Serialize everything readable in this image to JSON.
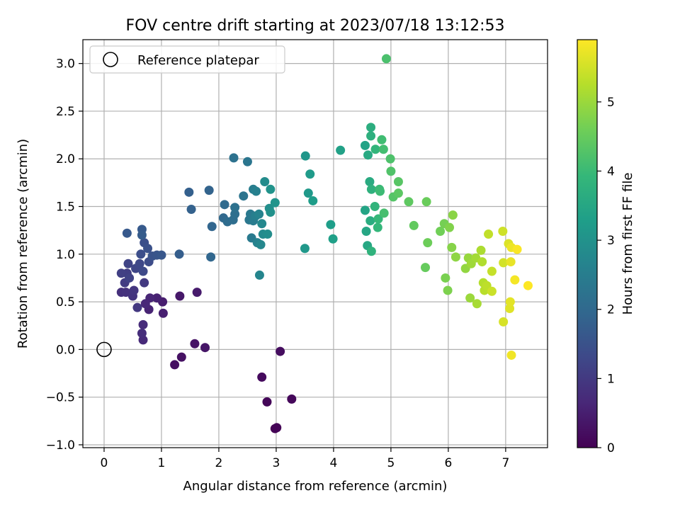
{
  "chart_data": {
    "type": "scatter",
    "title": "FOV centre drift starting at 2023/07/18 13:12:53",
    "xlabel": "Angular distance from reference (arcmin)",
    "ylabel": "Rotation from reference (arcmin)",
    "xlim": [
      -0.37,
      7.73
    ],
    "ylim": [
      -1.03,
      3.25
    ],
    "xticks": [
      0,
      1,
      2,
      3,
      4,
      5,
      6,
      7
    ],
    "xtick_labels": [
      "0",
      "1",
      "2",
      "3",
      "4",
      "5",
      "6",
      "7"
    ],
    "yticks": [
      -1.0,
      -0.5,
      0.0,
      0.5,
      1.0,
      1.5,
      2.0,
      2.5,
      3.0
    ],
    "ytick_labels": [
      "−1.0",
      "−0.5",
      "0.0",
      "0.5",
      "1.0",
      "1.5",
      "2.0",
      "2.5",
      "3.0"
    ],
    "grid": true,
    "legend": {
      "position": "top-left",
      "entries": [
        "Reference platepar"
      ]
    },
    "reference_point": {
      "x": 0,
      "y": 0,
      "label": "Reference platepar",
      "marker": "open-circle"
    },
    "colorbar": {
      "label": "Hours from first FF file",
      "colormap": "viridis",
      "min": 0,
      "max": 5.9,
      "ticks": [
        0,
        1,
        2,
        3,
        4,
        5
      ],
      "tick_labels": [
        "0",
        "1",
        "2",
        "3",
        "4",
        "5"
      ]
    },
    "colormap_stops": [
      "#440154",
      "#482878",
      "#3e4989",
      "#31688e",
      "#26828e",
      "#1f9e89",
      "#35b779",
      "#6ece58",
      "#b5de2b",
      "#fde725"
    ],
    "series": [
      {
        "points": [
          [
            2.98,
            -0.83
          ],
          [
            3.01,
            -0.82
          ],
          [
            2.84,
            -0.55
          ],
          [
            3.27,
            -0.52
          ],
          [
            2.75,
            -0.29
          ],
          [
            3.07,
            -0.02
          ],
          [
            1.23,
            -0.16
          ],
          [
            1.35,
            -0.08
          ],
          [
            1.58,
            0.06
          ],
          [
            1.76,
            0.02
          ],
          [
            1.32,
            0.56
          ],
          [
            1.62,
            0.6
          ],
          [
            1.02,
            0.5
          ],
          [
            1.03,
            0.38
          ],
          [
            0.92,
            0.54
          ],
          [
            0.78,
            0.42
          ],
          [
            0.8,
            0.54
          ],
          [
            0.72,
            0.48
          ],
          [
            0.68,
            0.1
          ],
          [
            0.68,
            0.26
          ],
          [
            0.66,
            0.17
          ],
          [
            0.3,
            0.6
          ],
          [
            0.38,
            0.6
          ],
          [
            0.5,
            0.56
          ],
          [
            0.52,
            0.62
          ],
          [
            0.58,
            0.44
          ],
          [
            0.7,
            0.7
          ],
          [
            0.36,
            0.7
          ],
          [
            0.4,
            0.8
          ],
          [
            0.3,
            0.8
          ],
          [
            0.44,
            0.75
          ],
          [
            0.42,
            0.9
          ],
          [
            0.55,
            0.85
          ],
          [
            0.62,
            0.9
          ],
          [
            0.68,
            0.82
          ],
          [
            0.78,
            0.92
          ],
          [
            0.64,
            1.0
          ],
          [
            0.7,
            1.12
          ],
          [
            0.76,
            1.06
          ],
          [
            0.84,
            0.98
          ],
          [
            0.92,
            0.99
          ],
          [
            1.0,
            0.99
          ],
          [
            0.4,
            1.22
          ],
          [
            0.66,
            1.26
          ],
          [
            0.66,
            1.2
          ],
          [
            1.31,
            1.0
          ],
          [
            1.48,
            1.65
          ],
          [
            1.52,
            1.47
          ],
          [
            1.83,
            1.67
          ],
          [
            1.88,
            1.29
          ],
          [
            1.86,
            0.97
          ],
          [
            2.08,
            1.38
          ],
          [
            2.1,
            1.52
          ],
          [
            2.15,
            1.34
          ],
          [
            2.25,
            1.36
          ],
          [
            2.28,
            1.42
          ],
          [
            2.28,
            1.49
          ],
          [
            2.26,
            2.01
          ],
          [
            2.43,
            1.61
          ],
          [
            2.5,
            1.97
          ],
          [
            2.53,
            1.36
          ],
          [
            2.55,
            1.42
          ],
          [
            2.57,
            1.17
          ],
          [
            2.6,
            1.35
          ],
          [
            2.6,
            1.68
          ],
          [
            2.64,
            1.4
          ],
          [
            2.65,
            1.66
          ],
          [
            2.67,
            1.12
          ],
          [
            2.7,
            1.42
          ],
          [
            2.71,
            0.78
          ],
          [
            2.73,
            1.1
          ],
          [
            2.75,
            1.32
          ],
          [
            2.77,
            1.21
          ],
          [
            2.8,
            1.76
          ],
          [
            2.85,
            1.21
          ],
          [
            2.88,
            1.48
          ],
          [
            2.9,
            1.44
          ],
          [
            2.9,
            1.68
          ],
          [
            2.98,
            1.54
          ],
          [
            3.51,
            2.03
          ],
          [
            3.5,
            1.06
          ],
          [
            3.56,
            1.64
          ],
          [
            3.59,
            1.84
          ],
          [
            3.64,
            1.56
          ],
          [
            3.95,
            1.31
          ],
          [
            3.99,
            1.16
          ],
          [
            4.12,
            2.09
          ],
          [
            4.55,
            2.14
          ],
          [
            4.55,
            1.46
          ],
          [
            4.57,
            1.24
          ],
          [
            4.59,
            1.09
          ],
          [
            4.6,
            2.04
          ],
          [
            4.63,
            1.76
          ],
          [
            4.64,
            1.35
          ],
          [
            4.65,
            2.33
          ],
          [
            4.65,
            2.24
          ],
          [
            4.66,
            1.68
          ],
          [
            4.66,
            1.03
          ],
          [
            4.72,
            1.5
          ],
          [
            4.73,
            2.1
          ],
          [
            4.77,
            1.28
          ],
          [
            4.78,
            1.37
          ],
          [
            4.8,
            1.68
          ],
          [
            4.81,
            1.66
          ],
          [
            4.84,
            2.2
          ],
          [
            4.87,
            2.1
          ],
          [
            4.88,
            1.43
          ],
          [
            4.92,
            3.05
          ],
          [
            4.99,
            2.0
          ],
          [
            5.0,
            1.87
          ],
          [
            5.04,
            1.6
          ],
          [
            5.13,
            1.76
          ],
          [
            5.13,
            1.64
          ],
          [
            5.31,
            1.55
          ],
          [
            5.4,
            1.3
          ],
          [
            5.6,
            0.86
          ],
          [
            5.62,
            1.55
          ],
          [
            5.64,
            1.12
          ],
          [
            5.86,
            1.24
          ],
          [
            5.93,
            1.32
          ],
          [
            5.95,
            0.75
          ],
          [
            5.99,
            0.62
          ],
          [
            6.02,
            1.28
          ],
          [
            6.06,
            1.07
          ],
          [
            6.08,
            1.41
          ],
          [
            6.13,
            0.97
          ],
          [
            6.3,
            0.85
          ],
          [
            6.35,
            0.96
          ],
          [
            6.38,
            0.54
          ],
          [
            6.4,
            0.9
          ],
          [
            6.48,
            0.96
          ],
          [
            6.5,
            0.48
          ],
          [
            6.57,
            1.04
          ],
          [
            6.59,
            0.92
          ],
          [
            6.61,
            0.7
          ],
          [
            6.63,
            0.62
          ],
          [
            6.67,
            0.67
          ],
          [
            6.7,
            1.21
          ],
          [
            6.76,
            0.82
          ],
          [
            6.76,
            0.61
          ],
          [
            6.95,
            1.24
          ],
          [
            6.96,
            0.91
          ],
          [
            6.96,
            0.29
          ],
          [
            7.05,
            1.11
          ],
          [
            7.07,
            0.43
          ],
          [
            7.08,
            0.5
          ],
          [
            7.09,
            0.92
          ],
          [
            7.1,
            1.07
          ],
          [
            7.1,
            -0.06
          ],
          [
            7.16,
            0.73
          ],
          [
            7.2,
            1.05
          ],
          [
            7.39,
            0.67
          ]
        ]
      }
    ]
  }
}
